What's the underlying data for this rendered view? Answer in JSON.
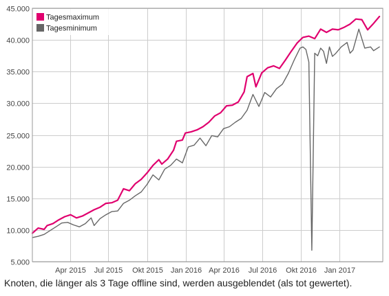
{
  "caption": "Knoten, die länger als 3 Tage offline sind, werden ausgeblendet (als tot gewertet).",
  "colors": {
    "max": "#e0006e",
    "min": "#666666",
    "grid": "#cccccc",
    "frame": "#999999"
  },
  "chart_data": {
    "type": "line",
    "title": "",
    "xlabel": "",
    "ylabel": "",
    "xlim": [
      "2015-01-01",
      "2017-04-14"
    ],
    "ylim": [
      5000,
      45000
    ],
    "yticks": [
      5000,
      10000,
      15000,
      20000,
      25000,
      30000,
      35000,
      40000,
      45000
    ],
    "ytick_labels": [
      "5.000",
      "10.000",
      "15.000",
      "20.000",
      "25.000",
      "30.000",
      "35.000",
      "40.000",
      "45.000"
    ],
    "xticks": [
      "2015-04-01",
      "2015-07-01",
      "2015-10-01",
      "2016-01-01",
      "2016-04-01",
      "2016-07-01",
      "2016-10-01",
      "2017-01-01"
    ],
    "xtick_labels": [
      "Apr 2015",
      "Jul 2015",
      "Okt 2015",
      "Jan 2016",
      "Apr 2016",
      "Jul 2016",
      "Okt 2016",
      "Jan 2017"
    ],
    "grid": true,
    "legend_position": "top-left",
    "series": [
      {
        "name": "Tagesmaximum",
        "color": "#e0006e",
        "points": [
          [
            "2015-01-01",
            9500
          ],
          [
            "2015-01-15",
            10300
          ],
          [
            "2015-01-29",
            10100
          ],
          [
            "2015-02-05",
            10700
          ],
          [
            "2015-02-19",
            11000
          ],
          [
            "2015-03-05",
            11600
          ],
          [
            "2015-03-19",
            12100
          ],
          [
            "2015-04-02",
            12400
          ],
          [
            "2015-04-16",
            11900
          ],
          [
            "2015-04-30",
            12200
          ],
          [
            "2015-05-14",
            12700
          ],
          [
            "2015-05-28",
            13200
          ],
          [
            "2015-06-11",
            13600
          ],
          [
            "2015-06-25",
            14200
          ],
          [
            "2015-07-09",
            14300
          ],
          [
            "2015-07-23",
            14700
          ],
          [
            "2015-08-06",
            16500
          ],
          [
            "2015-08-20",
            16200
          ],
          [
            "2015-09-03",
            17300
          ],
          [
            "2015-09-17",
            18000
          ],
          [
            "2015-10-01",
            19000
          ],
          [
            "2015-10-15",
            20200
          ],
          [
            "2015-10-29",
            21100
          ],
          [
            "2015-11-05",
            20400
          ],
          [
            "2015-11-19",
            21200
          ],
          [
            "2015-12-03",
            22600
          ],
          [
            "2015-12-10",
            24000
          ],
          [
            "2015-12-24",
            24200
          ],
          [
            "2015-12-31",
            25300
          ],
          [
            "2016-01-14",
            25500
          ],
          [
            "2016-01-28",
            25800
          ],
          [
            "2016-02-11",
            26300
          ],
          [
            "2016-02-25",
            27000
          ],
          [
            "2016-03-10",
            28000
          ],
          [
            "2016-03-24",
            28500
          ],
          [
            "2016-04-07",
            29600
          ],
          [
            "2016-04-21",
            29700
          ],
          [
            "2016-05-05",
            30200
          ],
          [
            "2016-05-19",
            31800
          ],
          [
            "2016-05-26",
            34200
          ],
          [
            "2016-06-09",
            34700
          ],
          [
            "2016-06-16",
            32600
          ],
          [
            "2016-06-30",
            34800
          ],
          [
            "2016-07-14",
            35600
          ],
          [
            "2016-07-28",
            35900
          ],
          [
            "2016-08-11",
            35500
          ],
          [
            "2016-08-25",
            36800
          ],
          [
            "2016-09-08",
            38200
          ],
          [
            "2016-09-22",
            39500
          ],
          [
            "2016-10-06",
            40400
          ],
          [
            "2016-10-20",
            40600
          ],
          [
            "2016-11-03",
            40200
          ],
          [
            "2016-11-17",
            41700
          ],
          [
            "2016-12-01",
            41200
          ],
          [
            "2016-12-15",
            41700
          ],
          [
            "2016-12-29",
            41600
          ],
          [
            "2017-01-12",
            42000
          ],
          [
            "2017-01-26",
            42500
          ],
          [
            "2017-02-09",
            43300
          ],
          [
            "2017-02-23",
            43200
          ],
          [
            "2017-03-09",
            41600
          ],
          [
            "2017-03-23",
            42600
          ],
          [
            "2017-04-06",
            43700
          ]
        ]
      },
      {
        "name": "Tagesminimum",
        "color": "#666666",
        "points": [
          [
            "2015-01-01",
            8800
          ],
          [
            "2015-01-15",
            9000
          ],
          [
            "2015-01-29",
            9300
          ],
          [
            "2015-02-12",
            9900
          ],
          [
            "2015-02-26",
            10500
          ],
          [
            "2015-03-12",
            11100
          ],
          [
            "2015-03-26",
            11200
          ],
          [
            "2015-04-09",
            10800
          ],
          [
            "2015-04-23",
            10500
          ],
          [
            "2015-05-07",
            11000
          ],
          [
            "2015-05-21",
            11900
          ],
          [
            "2015-05-28",
            10700
          ],
          [
            "2015-06-11",
            11800
          ],
          [
            "2015-06-25",
            12400
          ],
          [
            "2015-07-09",
            12900
          ],
          [
            "2015-07-23",
            13000
          ],
          [
            "2015-08-06",
            14200
          ],
          [
            "2015-08-20",
            14700
          ],
          [
            "2015-09-03",
            15400
          ],
          [
            "2015-09-17",
            16000
          ],
          [
            "2015-10-01",
            17200
          ],
          [
            "2015-10-15",
            18700
          ],
          [
            "2015-10-29",
            17900
          ],
          [
            "2015-11-12",
            19600
          ],
          [
            "2015-11-26",
            20200
          ],
          [
            "2015-12-10",
            21200
          ],
          [
            "2015-12-24",
            20600
          ],
          [
            "2016-01-07",
            23100
          ],
          [
            "2016-01-21",
            23400
          ],
          [
            "2016-02-04",
            24500
          ],
          [
            "2016-02-18",
            23300
          ],
          [
            "2016-03-03",
            24900
          ],
          [
            "2016-03-17",
            24700
          ],
          [
            "2016-03-31",
            26000
          ],
          [
            "2016-04-14",
            26300
          ],
          [
            "2016-04-28",
            27000
          ],
          [
            "2016-05-12",
            27600
          ],
          [
            "2016-05-26",
            28900
          ],
          [
            "2016-06-09",
            31400
          ],
          [
            "2016-06-23",
            29500
          ],
          [
            "2016-07-07",
            31700
          ],
          [
            "2016-07-21",
            31000
          ],
          [
            "2016-08-04",
            32300
          ],
          [
            "2016-08-18",
            33000
          ],
          [
            "2016-09-01",
            34700
          ],
          [
            "2016-09-15",
            36800
          ],
          [
            "2016-09-29",
            38700
          ],
          [
            "2016-10-06",
            38900
          ],
          [
            "2016-10-13",
            38500
          ],
          [
            "2016-10-20",
            36500
          ],
          [
            "2016-10-27",
            6800
          ],
          [
            "2016-11-03",
            37900
          ],
          [
            "2016-11-10",
            37500
          ],
          [
            "2016-11-17",
            38700
          ],
          [
            "2016-11-24",
            38200
          ],
          [
            "2016-12-01",
            36300
          ],
          [
            "2016-12-08",
            38900
          ],
          [
            "2016-12-15",
            37400
          ],
          [
            "2016-12-22",
            37800
          ],
          [
            "2017-01-05",
            38900
          ],
          [
            "2017-01-19",
            39600
          ],
          [
            "2017-01-26",
            37900
          ],
          [
            "2017-02-02",
            38400
          ],
          [
            "2017-02-16",
            41700
          ],
          [
            "2017-03-02",
            38700
          ],
          [
            "2017-03-16",
            38900
          ],
          [
            "2017-03-23",
            38300
          ],
          [
            "2017-04-06",
            38900
          ]
        ]
      }
    ]
  }
}
